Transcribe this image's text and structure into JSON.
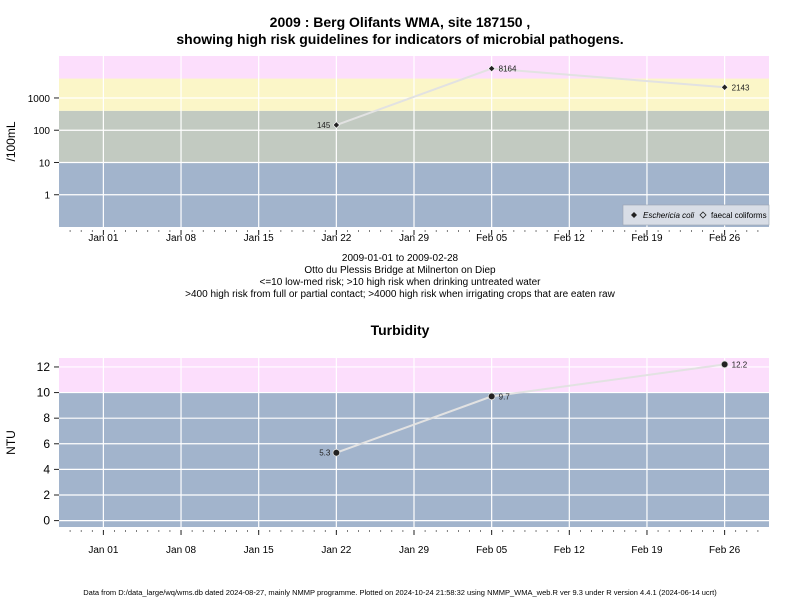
{
  "titles": {
    "line1": "2009 : Berg Olifants WMA, site 187150 ,",
    "line2": "showing high risk guidelines for indicators of microbial pathogens."
  },
  "info": {
    "daterange": "2009-01-01 to 2009-02-28",
    "location": "Otto du Plessis Bridge at Milnerton on Diep",
    "risk1": "<=10 low-med risk; >10 high risk when drinking untreated water",
    "risk2": ">400 high risk from full or partial contact; >4000 high risk when irrigating crops that are eaten raw"
  },
  "footer": "Data from D:/data_large/wq/wms.db dated 2024-08-27, mainly NMMP programme. Plotted on 2024-10-24 21:58:32 using NMMP_WMA_web.R ver 9.3 under R version 4.4.1 (2024-06-14 ucrt)",
  "colors": {
    "bg_blue": "#a2b4cc",
    "bg_grey": "#c2cac1",
    "bg_yellow": "#fbf6c8",
    "bg_pink": "#fcdefc",
    "line": "#e2e2e2",
    "point": "#222222"
  },
  "chart_data": [
    {
      "type": "line",
      "title": "",
      "xlabel": "",
      "ylabel": "/100mL",
      "y_scale": "log",
      "ylim": [
        0.1,
        20000
      ],
      "x_range": [
        "2008-12-28",
        "2009-03-02"
      ],
      "x_ticks": [
        "Jan 01",
        "Jan 08",
        "Jan 15",
        "Jan 22",
        "Jan 29",
        "Feb 05",
        "Feb 12",
        "Feb 19",
        "Feb 26"
      ],
      "y_ticks": [
        "1",
        "10",
        "100",
        "1000"
      ],
      "bands": [
        {
          "from": 0.1,
          "to": 10,
          "color": "#a2b4cc"
        },
        {
          "from": 10,
          "to": 400,
          "color": "#c2cac1"
        },
        {
          "from": 400,
          "to": 4000,
          "color": "#fbf6c8"
        },
        {
          "from": 4000,
          "to": 20000,
          "color": "#fcdefc"
        }
      ],
      "series": [
        {
          "name": "Eschericia coli",
          "x": [
            "2009-01-22",
            "2009-02-05",
            "2009-02-26"
          ],
          "y": [
            145,
            8164,
            2143
          ],
          "labels": [
            "145",
            "8164",
            "2143"
          ]
        }
      ],
      "legend": {
        "position": "bottom-right",
        "entries": [
          "Eschericia coli",
          "faecal coliforms"
        ]
      },
      "grid": true
    },
    {
      "type": "line",
      "title": "Turbidity",
      "xlabel": "",
      "ylabel": "NTU",
      "ylim": [
        -0.5,
        12.7
      ],
      "x_range": [
        "2008-12-28",
        "2009-03-02"
      ],
      "x_ticks": [
        "Jan 01",
        "Jan 08",
        "Jan 15",
        "Jan 22",
        "Jan 29",
        "Feb 05",
        "Feb 12",
        "Feb 19",
        "Feb 26"
      ],
      "y_ticks": [
        "0",
        "2",
        "4",
        "6",
        "8",
        "10",
        "12"
      ],
      "bands": [
        {
          "from": -0.5,
          "to": 10,
          "color": "#a2b4cc"
        },
        {
          "from": 10,
          "to": 12.7,
          "color": "#fcdefc"
        }
      ],
      "series": [
        {
          "name": "Turbidity",
          "x": [
            "2009-01-22",
            "2009-02-05",
            "2009-02-26"
          ],
          "y": [
            5.3,
            9.7,
            12.2
          ],
          "labels": [
            "5.3",
            "9.7",
            "12.2"
          ]
        }
      ],
      "grid": true
    }
  ]
}
